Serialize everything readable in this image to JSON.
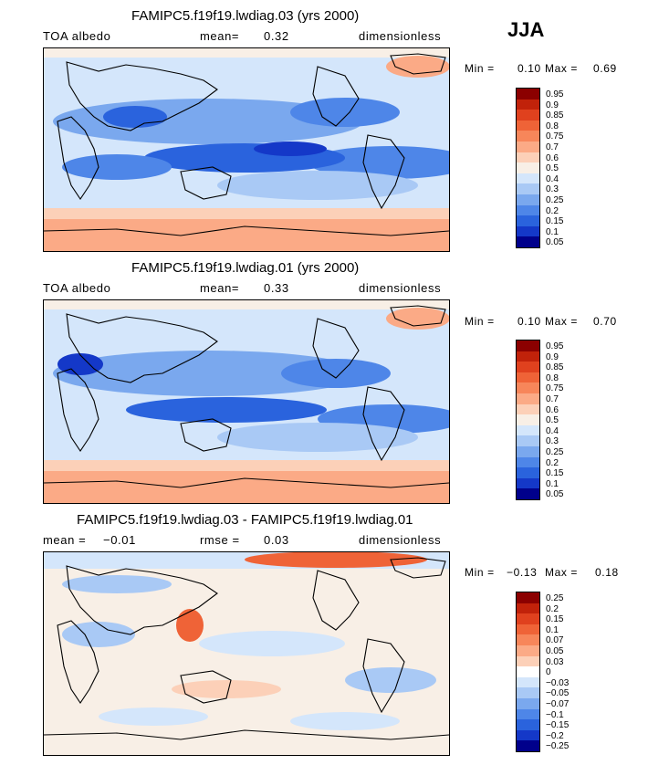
{
  "season": "JJA",
  "panels": [
    {
      "title": "FAMIPC5.f19f19.lwdiag.03 (yrs 2000)",
      "variable": "TOA albedo",
      "stat_label": "mean=",
      "stat_value": "0.32",
      "units": "dimensionless",
      "min_label": "Min =",
      "min_value": "0.10",
      "max_label": "Max =",
      "max_value": "0.69"
    },
    {
      "title": "FAMIPC5.f19f19.lwdiag.01 (yrs 2000)",
      "variable": "TOA albedo",
      "stat_label": "mean=",
      "stat_value": "0.33",
      "units": "dimensionless",
      "min_label": "Min =",
      "min_value": "0.10",
      "max_label": "Max =",
      "max_value": "0.70"
    },
    {
      "title": "FAMIPC5.f19f19.lwdiag.03 - FAMIPC5.f19f19.lwdiag.01",
      "mean_label": "mean =",
      "mean_value": "−0.01",
      "rmse_label": "rmse =",
      "rmse_value": "0.03",
      "units": "dimensionless",
      "min_label": "Min =",
      "min_value": "−0.13",
      "max_label": "Max =",
      "max_value": "0.18"
    }
  ],
  "chart_data": [
    {
      "type": "heatmap",
      "title": "FAMIPC5.f19f19.lwdiag.03 (yrs 2000)",
      "variable": "TOA albedo",
      "season": "JJA",
      "mean": 0.32,
      "min": 0.1,
      "max": 0.69,
      "units": "dimensionless",
      "colorbar_levels": [
        "0.95",
        "0.9",
        "0.85",
        "0.8",
        "0.75",
        "0.7",
        "0.6",
        "0.5",
        "0.4",
        "0.3",
        "0.25",
        "0.2",
        "0.15",
        "0.1",
        "0.05"
      ],
      "colorbar_colors": [
        "#8b0000",
        "#c1220a",
        "#e0411e",
        "#ef6337",
        "#f7865a",
        "#fbaa86",
        "#fcd0b8",
        "#f8efe6",
        "#d4e6fb",
        "#a9c9f5",
        "#7aa8ee",
        "#4e86e8",
        "#2a63dd",
        "#1438c8",
        "#00008b"
      ],
      "fields": {
        "land": "0.4–0.6 with low values in Sahara and Australia",
        "tropical_ocean": "0.15–0.25",
        "southern_ocean": "0.5–0.6",
        "antarctica": "0.6–0.7"
      }
    },
    {
      "type": "heatmap",
      "title": "FAMIPC5.f19f19.lwdiag.01 (yrs 2000)",
      "variable": "TOA albedo",
      "season": "JJA",
      "mean": 0.33,
      "min": 0.1,
      "max": 0.7,
      "units": "dimensionless",
      "colorbar_levels": [
        "0.95",
        "0.9",
        "0.85",
        "0.8",
        "0.75",
        "0.7",
        "0.6",
        "0.5",
        "0.4",
        "0.3",
        "0.25",
        "0.2",
        "0.15",
        "0.1",
        "0.05"
      ],
      "colorbar_colors": [
        "#8b0000",
        "#c1220a",
        "#e0411e",
        "#ef6337",
        "#f7865a",
        "#fbaa86",
        "#fcd0b8",
        "#f8efe6",
        "#d4e6fb",
        "#a9c9f5",
        "#7aa8ee",
        "#4e86e8",
        "#2a63dd",
        "#1438c8",
        "#00008b"
      ]
    },
    {
      "type": "heatmap",
      "title": "FAMIPC5.f19f19.lwdiag.03 - FAMIPC5.f19f19.lwdiag.01",
      "variable": "TOA albedo difference",
      "season": "JJA",
      "mean": -0.01,
      "rmse": 0.03,
      "min": -0.13,
      "max": 0.18,
      "units": "dimensionless",
      "colorbar_levels": [
        "0.25",
        "0.2",
        "0.15",
        "0.1",
        "0.07",
        "0.05",
        "0.03",
        "0",
        "−0.03",
        "−0.05",
        "−0.07",
        "−0.1",
        "−0.15",
        "−0.2",
        "−0.25"
      ],
      "colorbar_colors": [
        "#8b0000",
        "#c1220a",
        "#e0411e",
        "#ef6337",
        "#f7865a",
        "#fbaa86",
        "#fcd0b8",
        "#ffffff",
        "#d4e6fb",
        "#a9c9f5",
        "#7aa8ee",
        "#4e86e8",
        "#2a63dd",
        "#1438c8",
        "#00008b"
      ]
    }
  ]
}
